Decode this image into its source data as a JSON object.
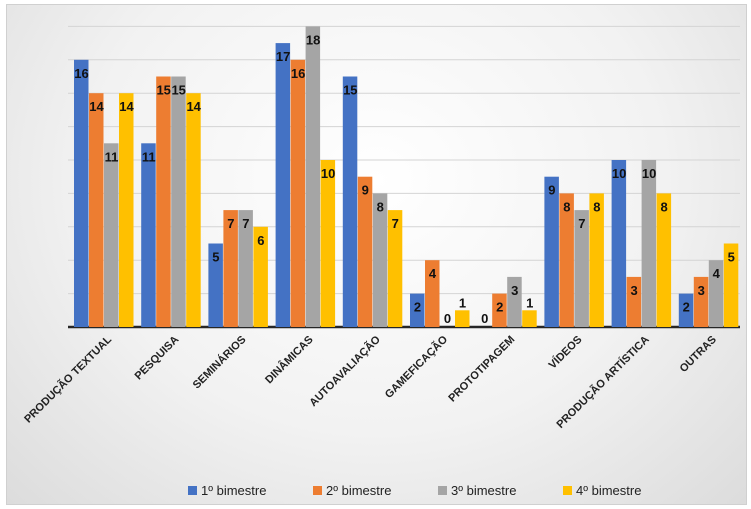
{
  "chart_data": {
    "type": "bar",
    "categories": [
      "PRODUÇÃO TEXTUAL",
      "PESQUISA",
      "SEMINÁRIOS",
      "DINÂMICAS",
      "AUTOAVALIAÇÃO",
      "GAMEFICAÇÃO",
      "PROTOTIPAGEM",
      "VÍDEOS",
      "PRODUÇÃO ARTÍSTICA",
      "OUTRAS"
    ],
    "series": [
      {
        "name": "1º bimestre",
        "color": "#4472C4",
        "values": [
          16,
          11,
          5,
          17,
          15,
          2,
          0,
          9,
          10,
          2
        ]
      },
      {
        "name": "2º bimestre",
        "color": "#ED7D31",
        "values": [
          14,
          15,
          7,
          16,
          9,
          4,
          2,
          8,
          3,
          3
        ]
      },
      {
        "name": "3º bimestre",
        "color": "#A5A5A5",
        "values": [
          11,
          15,
          7,
          18,
          8,
          0,
          3,
          7,
          10,
          4
        ]
      },
      {
        "name": "4º bimestre",
        "color": "#FFC000",
        "values": [
          14,
          14,
          6,
          10,
          7,
          1,
          1,
          8,
          8,
          5
        ]
      }
    ],
    "ylim": [
      0,
      18
    ],
    "grid": true,
    "legend_position": "bottom",
    "data_labels": true
  }
}
